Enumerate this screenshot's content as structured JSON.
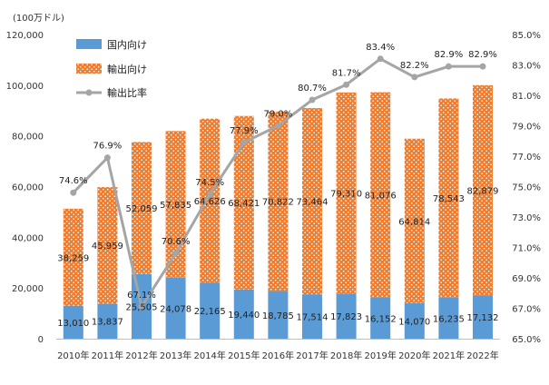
{
  "chart_data": {
    "type": "bar+line",
    "y_unit_label": "(100万ドル)",
    "categories": [
      "2010年",
      "2011年",
      "2012年",
      "2013年",
      "2014年",
      "2015年",
      "2016年",
      "2017年",
      "2018年",
      "2019年",
      "2020年",
      "2021年",
      "2022年"
    ],
    "series": [
      {
        "name": "国内向け",
        "kind": "stacked-bar",
        "axis": "left",
        "color": "#5b9bd5",
        "values": [
          13010,
          13837,
          25505,
          24078,
          22165,
          19440,
          18785,
          17514,
          17823,
          16152,
          14070,
          16235,
          17132
        ],
        "labels": [
          "13,010",
          "13,837",
          "25,505",
          "24,078",
          "22,165",
          "19,440",
          "18,785",
          "17,514",
          "17,823",
          "16,152",
          "14,070",
          "16,235",
          "17,132"
        ]
      },
      {
        "name": "輸出向け",
        "kind": "stacked-bar",
        "axis": "left",
        "color": "#ed7d31",
        "pattern": "dotted",
        "values": [
          38259,
          45959,
          52059,
          57835,
          64626,
          68421,
          70822,
          73464,
          79310,
          81076,
          64814,
          78543,
          82879
        ],
        "labels": [
          "38,259",
          "45,959",
          "52,059",
          "57,835",
          "64,626",
          "68,421",
          "70,822",
          "73,464",
          "79,310",
          "81,076",
          "64,814",
          "78,543",
          "82,879"
        ]
      },
      {
        "name": "輸出比率",
        "kind": "line",
        "axis": "right",
        "color": "#a5a5a5",
        "values": [
          74.6,
          76.9,
          67.1,
          70.6,
          74.5,
          77.9,
          79.0,
          80.7,
          81.7,
          83.4,
          82.2,
          82.9,
          82.9
        ],
        "labels": [
          "74.6%",
          "76.9%",
          "67.1%",
          "70.6%",
          "74.5%",
          "77.9%",
          "79.0%",
          "80.7%",
          "81.7%",
          "83.4%",
          "82.2%",
          "82.9%",
          "82.9%"
        ]
      }
    ],
    "left_axis": {
      "min": 0,
      "max": 120000,
      "step": 20000,
      "tick_labels": [
        "0",
        "20,000",
        "40,000",
        "60,000",
        "80,000",
        "100,000",
        "120,000"
      ]
    },
    "right_axis": {
      "min": 65,
      "max": 85,
      "step": 2,
      "tick_labels": [
        "65.0%",
        "67.0%",
        "69.0%",
        "71.0%",
        "73.0%",
        "75.0%",
        "77.0%",
        "79.0%",
        "81.0%",
        "83.0%",
        "85.0%"
      ]
    },
    "legend": {
      "position": "top-left",
      "entries": [
        "国内向け",
        "輸出向け",
        "輸出比率"
      ]
    },
    "grid": false
  }
}
